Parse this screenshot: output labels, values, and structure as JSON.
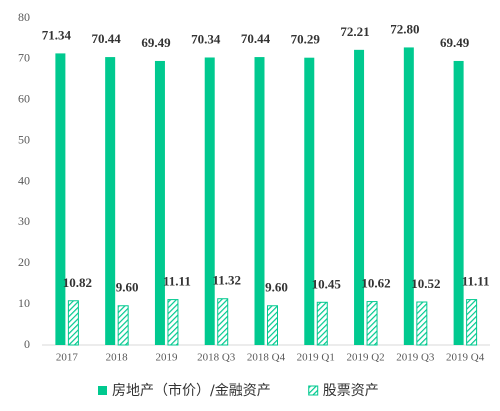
{
  "chart_data": {
    "type": "bar",
    "categories": [
      "2017",
      "2018",
      "2019",
      "2018 Q3",
      "2018 Q4",
      "2019 Q1",
      "2019 Q2",
      "2019 Q3",
      "2019 Q4"
    ],
    "series": [
      {
        "name": "房地产（市价）/金融资产",
        "color": "#00c98f",
        "values": [
          71.34,
          70.44,
          69.49,
          70.34,
          70.44,
          70.29,
          72.21,
          72.8,
          69.49
        ],
        "value_labels": [
          "71.34",
          "70.44",
          "69.49",
          "70.34",
          "70.44",
          "70.29",
          "72.21",
          "72.80",
          "69.49"
        ]
      },
      {
        "name": "股票资产",
        "color": "#00c98f",
        "pattern": "hatch",
        "values": [
          10.82,
          9.6,
          11.11,
          11.32,
          9.6,
          10.45,
          10.62,
          10.52,
          11.11
        ],
        "value_labels": [
          "10.82",
          "9.60",
          "11.11",
          "11.32",
          "9.60",
          "10.45",
          "10.62",
          "10.52",
          "11.11"
        ]
      }
    ],
    "ylim": [
      0,
      80
    ],
    "yticks": [
      0,
      10,
      20,
      30,
      40,
      50,
      60,
      70,
      80
    ],
    "grid": false,
    "legend": "bottom"
  }
}
